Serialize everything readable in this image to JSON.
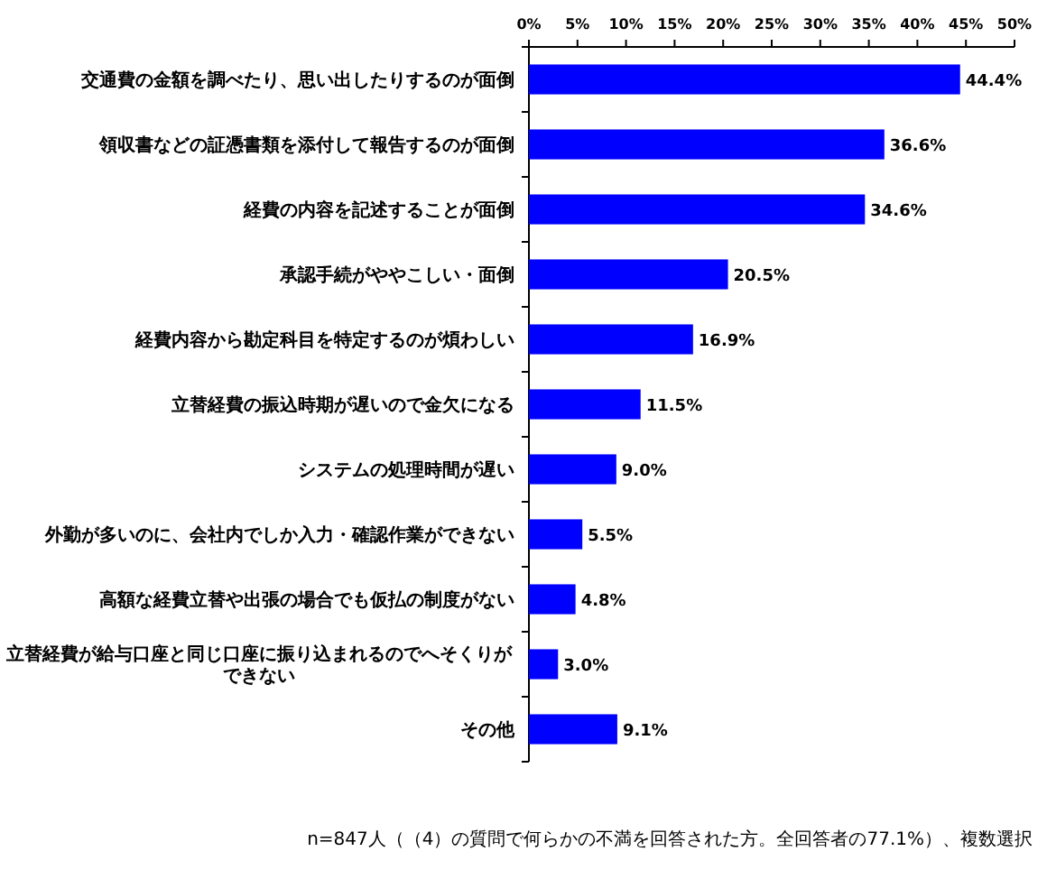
{
  "chart_data": {
    "type": "bar",
    "orientation": "horizontal",
    "categories": [
      "交通費の金額を調べたり、思い出したりするのが面倒",
      "領収書などの証憑書類を添付して報告するのが面倒",
      "経費の内容を記述することが面倒",
      "承認手続がややこしい・面倒",
      "経費内容から勘定科目を特定するのが煩わしい",
      "立替経費の振込時期が遅いので金欠になる",
      "システムの処理時間が遅い",
      "外勤が多いのに、会社内でしか入力・確認作業ができない",
      "高額な経費立替や出張の場合でも仮払の制度がない",
      "立替経費が給与口座と同じ口座に振り込まれるのでへそくりができない",
      "その他"
    ],
    "values": [
      44.4,
      36.6,
      34.6,
      20.5,
      16.9,
      11.5,
      9.0,
      5.5,
      4.8,
      3.0,
      9.1
    ],
    "value_labels": [
      "44.4%",
      "36.6%",
      "34.6%",
      "20.5%",
      "16.9%",
      "11.5%",
      "9.0%",
      "5.5%",
      "4.8%",
      "3.0%",
      "9.1%"
    ],
    "color": "#0000ff",
    "xlim": [
      0,
      50
    ],
    "xticks": [
      {
        "value": 0,
        "label": "0%"
      },
      {
        "value": 5,
        "label": "5%"
      },
      {
        "value": 10,
        "label": "10%"
      },
      {
        "value": 15,
        "label": "15%"
      },
      {
        "value": 20,
        "label": "20%"
      },
      {
        "value": 25,
        "label": "25%"
      },
      {
        "value": 30,
        "label": "30%"
      },
      {
        "value": 35,
        "label": "35%"
      },
      {
        "value": 40,
        "label": "40%"
      },
      {
        "value": 45,
        "label": "45%"
      },
      {
        "value": 50,
        "label": "50%"
      }
    ],
    "annotations": [
      "n=847人（（4）の質問で何らかの不満を回答された方。全回答者の77.1%）、複数選択"
    ]
  }
}
